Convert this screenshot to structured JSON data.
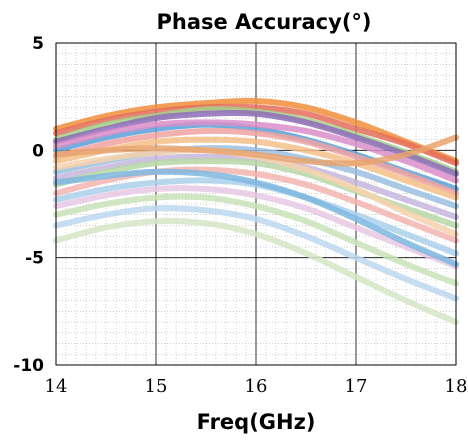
{
  "chart_data": {
    "type": "line",
    "title": "Phase Accuracy(°)",
    "xlabel": "Freq(GHz)",
    "ylabel": "",
    "xlim": [
      14,
      18
    ],
    "ylim": [
      -10,
      5
    ],
    "x_ticks": [
      14,
      15,
      16,
      17,
      18
    ],
    "y_ticks": [
      5,
      0,
      -5,
      -10
    ],
    "x_tick_labels": [
      "14",
      "15",
      "16",
      "17",
      "18"
    ],
    "y_tick_labels": [
      "5",
      "0",
      "-5",
      "-10"
    ],
    "grid": true,
    "minor_grid": true,
    "legend": "none",
    "x": [
      14,
      14.5,
      15,
      15.5,
      16,
      16.5,
      17,
      17.5,
      18
    ],
    "series": [
      {
        "color": "#f28e3b",
        "values": [
          1.0,
          1.6,
          2.0,
          2.2,
          2.3,
          2.0,
          1.3,
          0.4,
          -0.5
        ]
      },
      {
        "color": "#e46f5a",
        "values": [
          0.8,
          1.4,
          1.8,
          2.0,
          2.0,
          1.7,
          1.0,
          0.3,
          -0.6
        ]
      },
      {
        "color": "#a4cf8a",
        "values": [
          0.5,
          1.2,
          1.6,
          1.9,
          1.8,
          1.4,
          0.7,
          -0.1,
          -1.0
        ]
      },
      {
        "color": "#8e6cb8",
        "values": [
          0.4,
          1.0,
          1.5,
          1.7,
          1.7,
          1.3,
          0.6,
          -0.2,
          -1.1
        ]
      },
      {
        "color": "#5aa0d8",
        "values": [
          0.0,
          0.6,
          1.0,
          1.2,
          1.0,
          0.5,
          -0.2,
          -1.0,
          -1.8
        ]
      },
      {
        "color": "#f0a3a0",
        "values": [
          -0.3,
          0.3,
          0.7,
          0.9,
          0.8,
          0.4,
          -0.3,
          -1.1,
          -2.0
        ]
      },
      {
        "color": "#d98ec9",
        "values": [
          0.2,
          0.8,
          1.2,
          1.3,
          1.2,
          0.9,
          0.3,
          -0.5,
          -1.4
        ]
      },
      {
        "color": "#f5c08a",
        "values": [
          -0.5,
          0.0,
          0.4,
          0.5,
          0.4,
          0.0,
          -0.6,
          -1.4,
          -2.2
        ]
      },
      {
        "color": "#9bbfe0",
        "values": [
          -1.0,
          -0.5,
          -0.1,
          0.1,
          0.0,
          -0.4,
          -1.0,
          -1.8,
          -2.6
        ]
      },
      {
        "color": "#c7b6dd",
        "values": [
          -1.3,
          -0.8,
          -0.4,
          -0.3,
          -0.4,
          -0.8,
          -1.5,
          -2.3,
          -3.1
        ]
      },
      {
        "color": "#b7d7a6",
        "values": [
          -1.6,
          -1.0,
          -0.6,
          -0.5,
          -0.6,
          -1.1,
          -1.9,
          -2.7,
          -3.5
        ]
      },
      {
        "color": "#f3b5b0",
        "values": [
          -2.0,
          -1.4,
          -1.0,
          -0.9,
          -1.1,
          -1.6,
          -2.4,
          -3.3,
          -4.2
        ]
      },
      {
        "color": "#aad0ec",
        "values": [
          -2.3,
          -1.8,
          -1.5,
          -1.4,
          -1.6,
          -2.2,
          -3.0,
          -3.9,
          -4.8
        ]
      },
      {
        "color": "#e7c9e3",
        "values": [
          -2.6,
          -2.1,
          -1.8,
          -1.8,
          -2.1,
          -2.7,
          -3.6,
          -4.5,
          -5.4
        ]
      },
      {
        "color": "#c9e2b8",
        "values": [
          -3.0,
          -2.5,
          -2.2,
          -2.2,
          -2.6,
          -3.3,
          -4.3,
          -5.3,
          -6.2
        ]
      },
      {
        "color": "#bcd7f0",
        "values": [
          -3.5,
          -3.0,
          -2.7,
          -2.8,
          -3.2,
          -4.0,
          -5.0,
          -6.0,
          -6.9
        ]
      },
      {
        "color": "#d5e6c6",
        "values": [
          -4.2,
          -3.6,
          -3.3,
          -3.4,
          -3.9,
          -4.8,
          -5.9,
          -7.0,
          -8.0
        ]
      },
      {
        "color": "#f6d2ae",
        "values": [
          -0.8,
          -0.4,
          -0.1,
          0.0,
          -0.3,
          -0.9,
          -1.8,
          -2.9,
          -3.9
        ]
      },
      {
        "color": "#7eb7df",
        "values": [
          -1.5,
          -1.2,
          -1.0,
          -1.1,
          -1.5,
          -2.2,
          -3.2,
          -4.3,
          -5.3
        ]
      },
      {
        "color": "#e8a36f",
        "values": [
          -0.2,
          0.0,
          0.1,
          0.0,
          -0.2,
          -0.5,
          -0.6,
          -0.2,
          0.6
        ]
      }
    ]
  }
}
